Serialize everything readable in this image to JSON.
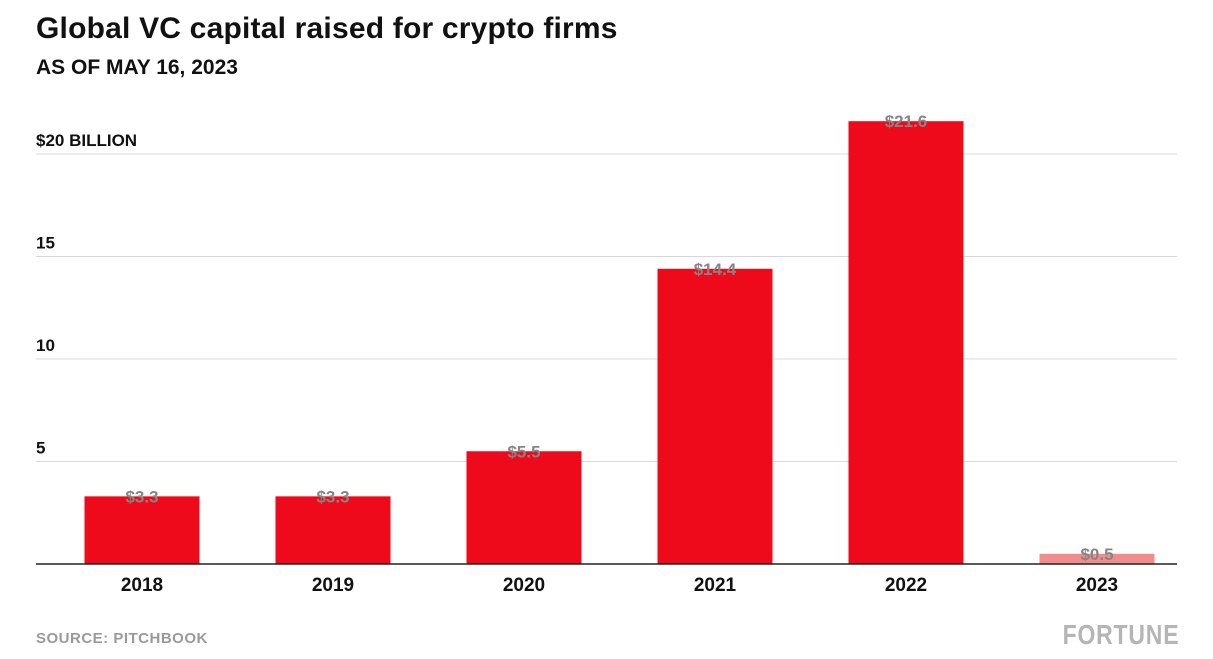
{
  "title": "Global VC capital raised for crypto firms",
  "subtitle": "AS OF MAY 16, 2023",
  "source": "SOURCE: PITCHBOOK",
  "brand": "FORTUNE",
  "colors": {
    "bar": "#ee0a1a",
    "bar_partial": "#f08c8c",
    "value_label": "#858585",
    "grid": "#d8d8d8",
    "axis": "#222222"
  },
  "chart_data": {
    "type": "bar",
    "title": "Global VC capital raised for crypto firms",
    "subtitle": "AS OF MAY 16, 2023",
    "xlabel": "",
    "ylabel": "$ billion",
    "categories": [
      "2018",
      "2019",
      "2020",
      "2021",
      "2022",
      "2023"
    ],
    "values": [
      3.3,
      3.3,
      5.5,
      14.4,
      21.6,
      0.5
    ],
    "value_labels": [
      "$3.3",
      "$3.3",
      "$5.5",
      "$14.4",
      "$21.6",
      "$0.5"
    ],
    "partial": [
      false,
      false,
      false,
      false,
      false,
      true
    ],
    "ylim": [
      0,
      21.6
    ],
    "yticks": [
      5,
      10,
      15,
      20
    ],
    "ytick_labels": [
      "5",
      "10",
      "15",
      "$20 BILLION"
    ],
    "grid": true
  }
}
